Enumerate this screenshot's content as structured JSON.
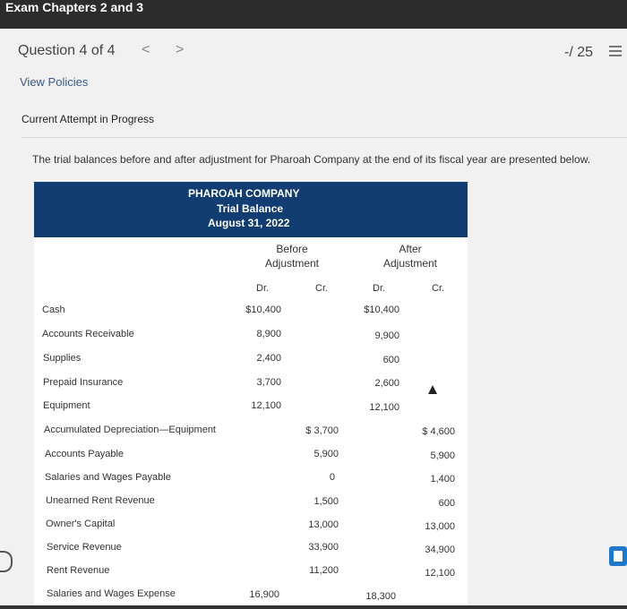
{
  "header": {
    "title": "Exam Chapters 2 and 3"
  },
  "question_nav": {
    "label": "Question 4 of 4",
    "prev": "<",
    "next": ">"
  },
  "score": "-/ 25",
  "links": {
    "view_policies": "View Policies"
  },
  "status": "Current Attempt in Progress",
  "intro": "The trial balances before and after adjustment for Pharoah Company at the end of its fiscal year are presented below.",
  "table": {
    "company": "PHAROAH COMPANY",
    "statement": "Trial Balance",
    "date": "August 31, 2022",
    "groups": [
      {
        "line1": "Before",
        "line2": "Adjustment"
      },
      {
        "line1": "After",
        "line2": "Adjustment"
      }
    ],
    "col_dr": "Dr.",
    "col_cr": "Cr.",
    "rows": [
      {
        "label": "Cash",
        "before_dr": "$10,400",
        "before_cr": "",
        "after_dr": "$10,400",
        "after_cr": ""
      },
      {
        "label": "Accounts Receivable",
        "before_dr": "8,900",
        "before_cr": "",
        "after_dr": "9,900",
        "after_cr": ""
      },
      {
        "label": "Supplies",
        "before_dr": "2,400",
        "before_cr": "",
        "after_dr": "600",
        "after_cr": ""
      },
      {
        "label": "Prepaid Insurance",
        "before_dr": "3,700",
        "before_cr": "",
        "after_dr": "2,600",
        "after_cr": ""
      },
      {
        "label": "Equipment",
        "before_dr": "12,100",
        "before_cr": "",
        "after_dr": "12,100",
        "after_cr": ""
      },
      {
        "label": "Accumulated Depreciation—Equipment",
        "before_dr": "",
        "before_cr": "$ 3,700",
        "after_dr": "",
        "after_cr": "$ 4,600"
      },
      {
        "label": "Accounts Payable",
        "before_dr": "",
        "before_cr": "5,900",
        "after_dr": "",
        "after_cr": "5,900"
      },
      {
        "label": "Salaries and Wages Payable",
        "before_dr": "",
        "before_cr": "0",
        "after_dr": "",
        "after_cr": "1,400"
      },
      {
        "label": "Unearned Rent Revenue",
        "before_dr": "",
        "before_cr": "1,500",
        "after_dr": "",
        "after_cr": "600"
      },
      {
        "label": "Owner's Capital",
        "before_dr": "",
        "before_cr": "13,000",
        "after_dr": "",
        "after_cr": "13,000"
      },
      {
        "label": "Service Revenue",
        "before_dr": "",
        "before_cr": "33,900",
        "after_dr": "",
        "after_cr": "34,900"
      },
      {
        "label": "Rent Revenue",
        "before_dr": "",
        "before_cr": "11,200",
        "after_dr": "",
        "after_cr": "12,100"
      },
      {
        "label": "Salaries and Wages Expense",
        "before_dr": "16,900",
        "before_cr": "",
        "after_dr": "18,300",
        "after_cr": ""
      }
    ]
  }
}
